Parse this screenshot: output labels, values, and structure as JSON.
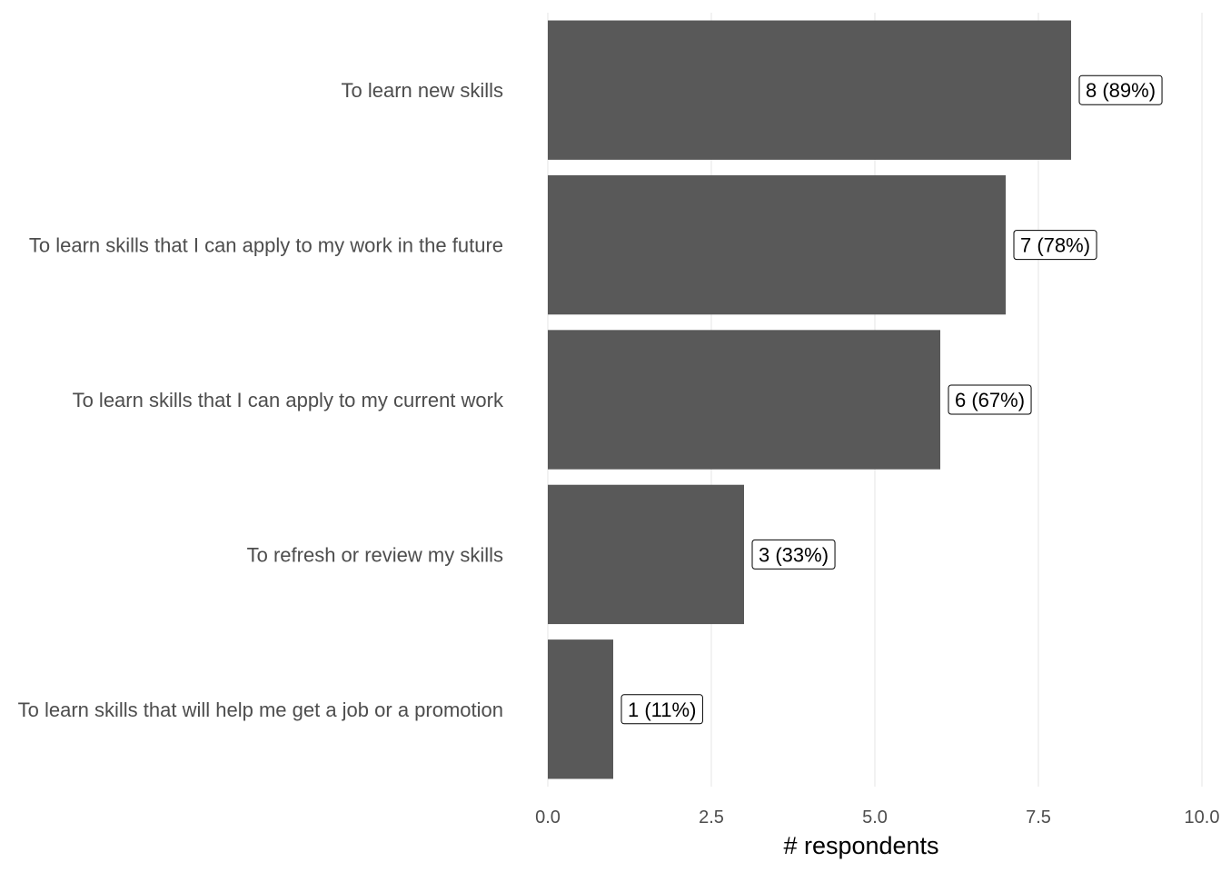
{
  "chart_data": {
    "type": "bar",
    "orientation": "horizontal",
    "categories": [
      "To learn new skills",
      "To learn skills that I can apply to my work in the future",
      "To learn skills that I can apply to my current work",
      "To refresh or review my skills",
      "To learn skills that will help me get a job or a promotion"
    ],
    "values": [
      8,
      7,
      6,
      3,
      1
    ],
    "data_labels": [
      "8 (89%)",
      "7 (78%)",
      "6 (67%)",
      "3 (33%)",
      "1 (11%)"
    ],
    "xlabel": "# respondents",
    "ylabel": "",
    "xlim": [
      0,
      10
    ],
    "x_ticks": [
      0,
      2.5,
      5,
      7.5,
      10
    ],
    "x_tick_labels": [
      "0.0",
      "2.5",
      "5.0",
      "7.5",
      "10.0"
    ],
    "grid": "vertical",
    "bar_color": "#595959",
    "grid_color": "#ebebeb"
  }
}
